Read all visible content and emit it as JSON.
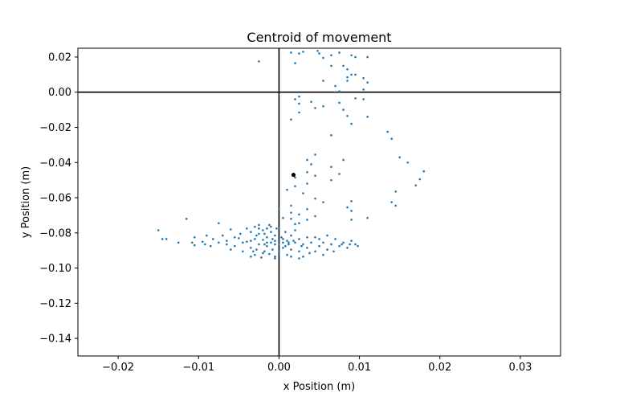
{
  "chart_data": {
    "type": "scatter",
    "title": "Centroid of movement",
    "xlabel": "x Position (m)",
    "ylabel": "y Position (m)",
    "xlim": [
      -0.025,
      0.035
    ],
    "ylim": [
      -0.15,
      0.025
    ],
    "x_ticks": [
      -0.02,
      -0.01,
      0.0,
      0.01,
      0.02,
      0.03
    ],
    "x_tick_labels": [
      "−0.02",
      "−0.01",
      "0.00",
      "0.01",
      "0.02",
      "0.03"
    ],
    "y_ticks": [
      0.02,
      0.0,
      -0.02,
      -0.04,
      -0.06,
      -0.08,
      -0.1,
      -0.12,
      -0.14
    ],
    "y_tick_labels": [
      "0.02",
      "0.00",
      "−0.02",
      "−0.04",
      "−0.06",
      "−0.08",
      "−0.10",
      "−0.12",
      "−0.14"
    ],
    "grid": false,
    "reference_lines": {
      "x": 0.0,
      "y": 0.0,
      "color": "#000000"
    },
    "series": [
      {
        "color": "#1f77b4",
        "marker_size": 1.3,
        "points": [
          [
            -0.0025,
            0.0175
          ],
          [
            0.0015,
            0.0225
          ],
          [
            0.0025,
            0.022
          ],
          [
            0.003,
            0.023
          ],
          [
            0.0048,
            0.0235
          ],
          [
            0.005,
            0.022
          ],
          [
            0.0065,
            0.021
          ],
          [
            0.0075,
            0.0225
          ],
          [
            0.009,
            0.021
          ],
          [
            0.0095,
            0.02
          ],
          [
            0.011,
            0.02
          ],
          [
            0.0085,
            0.013
          ],
          [
            0.009,
            0.01
          ],
          [
            0.0105,
            0.008
          ],
          [
            0.011,
            0.0055
          ],
          [
            0.0085,
            0.0065
          ],
          [
            0.0095,
            0.01
          ],
          [
            0.008,
            0.015
          ],
          [
            0.0065,
            0.015
          ],
          [
            0.007,
            0.0035
          ],
          [
            0.0055,
            0.0065
          ],
          [
            0.0075,
            0.0005
          ],
          [
            0.0085,
            0.0085
          ],
          [
            0.002,
            0.0165
          ],
          [
            0.0055,
            0.0195
          ],
          [
            0.0105,
            0.0015
          ],
          [
            0.0105,
            -0.004
          ],
          [
            0.0095,
            -0.0035
          ],
          [
            0.002,
            -0.004
          ],
          [
            0.0025,
            -0.0025
          ],
          [
            0.004,
            -0.0055
          ],
          [
            0.0025,
            -0.0065
          ],
          [
            0.0075,
            -0.006
          ],
          [
            0.008,
            -0.01
          ],
          [
            0.0085,
            -0.0135
          ],
          [
            0.0055,
            -0.008
          ],
          [
            0.0045,
            -0.009
          ],
          [
            0.0025,
            -0.0115
          ],
          [
            0.0015,
            -0.0155
          ],
          [
            0.011,
            -0.014
          ],
          [
            0.009,
            -0.018
          ],
          [
            0.0065,
            -0.0245
          ],
          [
            0.0035,
            -0.0385
          ],
          [
            0.0045,
            -0.0355
          ],
          [
            0.004,
            -0.041
          ],
          [
            0.0065,
            -0.05
          ],
          [
            0.008,
            -0.0385
          ],
          [
            0.0065,
            -0.0425
          ],
          [
            0.0075,
            -0.0465
          ],
          [
            0.0045,
            -0.0475
          ],
          [
            0.0035,
            -0.0455
          ],
          [
            0.0035,
            -0.052
          ],
          [
            0.002,
            -0.0485
          ],
          [
            0.002,
            -0.0535
          ],
          [
            0.001,
            -0.0555
          ],
          [
            0.003,
            -0.0575
          ],
          [
            0.0045,
            -0.0605
          ],
          [
            0.0055,
            -0.0625
          ],
          [
            0.009,
            -0.062
          ],
          [
            0.0085,
            -0.0655
          ],
          [
            0.009,
            -0.0675
          ],
          [
            0.0035,
            -0.0665
          ],
          [
            0.0025,
            -0.0695
          ],
          [
            0.0015,
            -0.072
          ],
          [
            0.0025,
            -0.0745
          ],
          [
            0.0035,
            -0.0725
          ],
          [
            0.0015,
            -0.0685
          ],
          [
            0.0005,
            -0.0715
          ],
          [
            0.0,
            -0.0665
          ],
          [
            0.002,
            -0.075
          ],
          [
            0.0045,
            -0.0705
          ],
          [
            0.0015,
            -0.0645
          ],
          [
            0.0135,
            -0.0225
          ],
          [
            0.014,
            -0.0265
          ],
          [
            0.015,
            -0.037
          ],
          [
            0.016,
            -0.04
          ],
          [
            0.017,
            -0.053
          ],
          [
            0.0175,
            -0.0495
          ],
          [
            0.018,
            -0.045
          ],
          [
            0.0145,
            -0.0565
          ],
          [
            0.014,
            -0.0625
          ],
          [
            0.0145,
            -0.0645
          ],
          [
            0.011,
            -0.0715
          ],
          [
            0.009,
            -0.0725
          ],
          [
            -0.015,
            -0.0785
          ],
          [
            -0.0145,
            -0.0835
          ],
          [
            -0.014,
            -0.0835
          ],
          [
            -0.0125,
            -0.0855
          ],
          [
            -0.0115,
            -0.072
          ],
          [
            -0.0105,
            -0.087
          ],
          [
            -0.0105,
            -0.0825
          ],
          [
            -0.0095,
            -0.085
          ],
          [
            -0.009,
            -0.0815
          ],
          [
            -0.0085,
            -0.0875
          ],
          [
            -0.0075,
            -0.0745
          ],
          [
            -0.0075,
            -0.0855
          ],
          [
            -0.007,
            -0.0815
          ],
          [
            -0.0065,
            -0.0845
          ],
          [
            -0.006,
            -0.078
          ],
          [
            -0.0055,
            -0.0875
          ],
          [
            -0.005,
            -0.083
          ],
          [
            -0.0048,
            -0.0805
          ],
          [
            -0.0045,
            -0.0905
          ],
          [
            -0.004,
            -0.0775
          ],
          [
            -0.004,
            -0.085
          ],
          [
            -0.0035,
            -0.0885
          ],
          [
            -0.0035,
            -0.0795
          ],
          [
            -0.003,
            -0.0765
          ],
          [
            -0.003,
            -0.0835
          ],
          [
            -0.003,
            -0.0925
          ],
          [
            -0.0028,
            -0.0895
          ],
          [
            -0.0025,
            -0.0805
          ],
          [
            -0.0025,
            -0.0755
          ],
          [
            -0.0025,
            -0.0865
          ],
          [
            -0.0022,
            -0.094
          ],
          [
            -0.002,
            -0.0785
          ],
          [
            -0.002,
            -0.084
          ],
          [
            -0.0018,
            -0.0905
          ],
          [
            -0.0015,
            -0.0775
          ],
          [
            -0.0015,
            -0.0825
          ],
          [
            -0.0015,
            -0.0875
          ],
          [
            -0.0012,
            -0.092
          ],
          [
            -0.001,
            -0.0795
          ],
          [
            -0.001,
            -0.0855
          ],
          [
            -0.0008,
            -0.0895
          ],
          [
            -0.0005,
            -0.0815
          ],
          [
            -0.0005,
            -0.0845
          ],
          [
            -0.0005,
            -0.0935
          ],
          [
            -0.0003,
            -0.0775
          ],
          [
            0.0,
            -0.0865
          ],
          [
            0.0,
            -0.0905
          ],
          [
            0.0003,
            -0.0825
          ],
          [
            0.0005,
            -0.0855
          ],
          [
            0.0005,
            -0.0885
          ],
          [
            0.0008,
            -0.0795
          ],
          [
            0.001,
            -0.0845
          ],
          [
            0.001,
            -0.0925
          ],
          [
            0.0012,
            -0.0865
          ],
          [
            0.0015,
            -0.0815
          ],
          [
            0.0015,
            -0.0895
          ],
          [
            0.002,
            -0.0855
          ],
          [
            0.002,
            -0.0785
          ],
          [
            0.0025,
            -0.0835
          ],
          [
            0.0025,
            -0.0905
          ],
          [
            0.003,
            -0.0865
          ],
          [
            0.003,
            -0.0935
          ],
          [
            0.0035,
            -0.0825
          ],
          [
            0.0035,
            -0.0885
          ],
          [
            0.004,
            -0.0855
          ],
          [
            0.0045,
            -0.0905
          ],
          [
            0.005,
            -0.0835
          ],
          [
            0.005,
            -0.0875
          ],
          [
            0.0055,
            -0.0855
          ],
          [
            0.006,
            -0.0815
          ],
          [
            0.006,
            -0.0895
          ],
          [
            0.0065,
            -0.0865
          ],
          [
            0.007,
            -0.0835
          ],
          [
            0.0075,
            -0.0875
          ],
          [
            0.008,
            -0.0855
          ],
          [
            0.0085,
            -0.0885
          ],
          [
            0.009,
            -0.0845
          ],
          [
            0.0095,
            -0.0865
          ],
          [
            0.0098,
            -0.0875
          ],
          [
            0.0045,
            -0.0825
          ],
          [
            0.0055,
            -0.0925
          ],
          [
            0.0025,
            -0.0945
          ],
          [
            0.0015,
            -0.0935
          ],
          [
            -0.0005,
            -0.0945
          ],
          [
            -0.002,
            -0.0915
          ],
          [
            -0.0035,
            -0.0935
          ],
          [
            -0.001,
            -0.0765
          ],
          [
            -0.0025,
            -0.0775
          ],
          [
            -0.0012,
            -0.0755
          ],
          [
            0.0,
            -0.0775
          ],
          [
            -0.006,
            -0.0895
          ],
          [
            -0.0065,
            -0.0865
          ],
          [
            -0.0082,
            -0.0835
          ],
          [
            -0.0092,
            -0.0865
          ],
          [
            -0.0108,
            -0.0855
          ],
          [
            -0.0055,
            -0.0825
          ],
          [
            -0.0045,
            -0.0855
          ],
          [
            -0.0035,
            -0.0845
          ],
          [
            -0.0028,
            -0.0815
          ],
          [
            -0.0018,
            -0.0865
          ],
          [
            -0.0008,
            -0.0835
          ],
          [
            0.0008,
            -0.0875
          ],
          [
            0.0018,
            -0.0845
          ],
          [
            0.0028,
            -0.0875
          ],
          [
            0.0038,
            -0.0915
          ],
          [
            0.0068,
            -0.0905
          ],
          [
            0.0078,
            -0.0865
          ],
          [
            0.0088,
            -0.0865
          ],
          [
            -0.0015,
            -0.0855
          ],
          [
            -0.0005,
            -0.0865
          ],
          [
            0.0005,
            -0.0835
          ],
          [
            0.0012,
            -0.0855
          ],
          [
            -0.0018,
            -0.0805
          ],
          [
            -0.0032,
            -0.0905
          ]
        ]
      },
      {
        "color": "#000000",
        "marker_size": 2.6,
        "points": [
          [
            0.0018,
            -0.047
          ]
        ]
      }
    ]
  }
}
